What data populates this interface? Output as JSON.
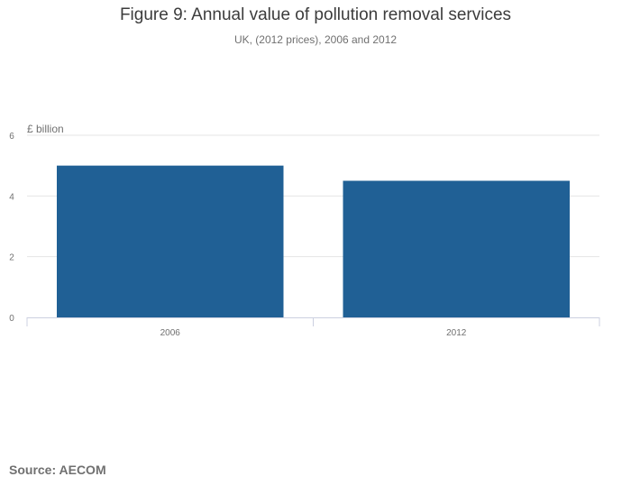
{
  "chart_data": {
    "type": "bar",
    "title": "Figure 9: Annual value of pollution removal services",
    "subtitle": "UK, (2012 prices), 2006 and 2012",
    "ylabel": "£ billion",
    "xlabel": "",
    "categories": [
      "2006",
      "2012"
    ],
    "values": [
      5.0,
      4.5
    ],
    "ylim": [
      0,
      6
    ],
    "yticks": [
      "0",
      "2",
      "4",
      "6"
    ],
    "grid": true,
    "legend": "none",
    "bar_color": "#206095"
  },
  "source": "Source: AECOM"
}
